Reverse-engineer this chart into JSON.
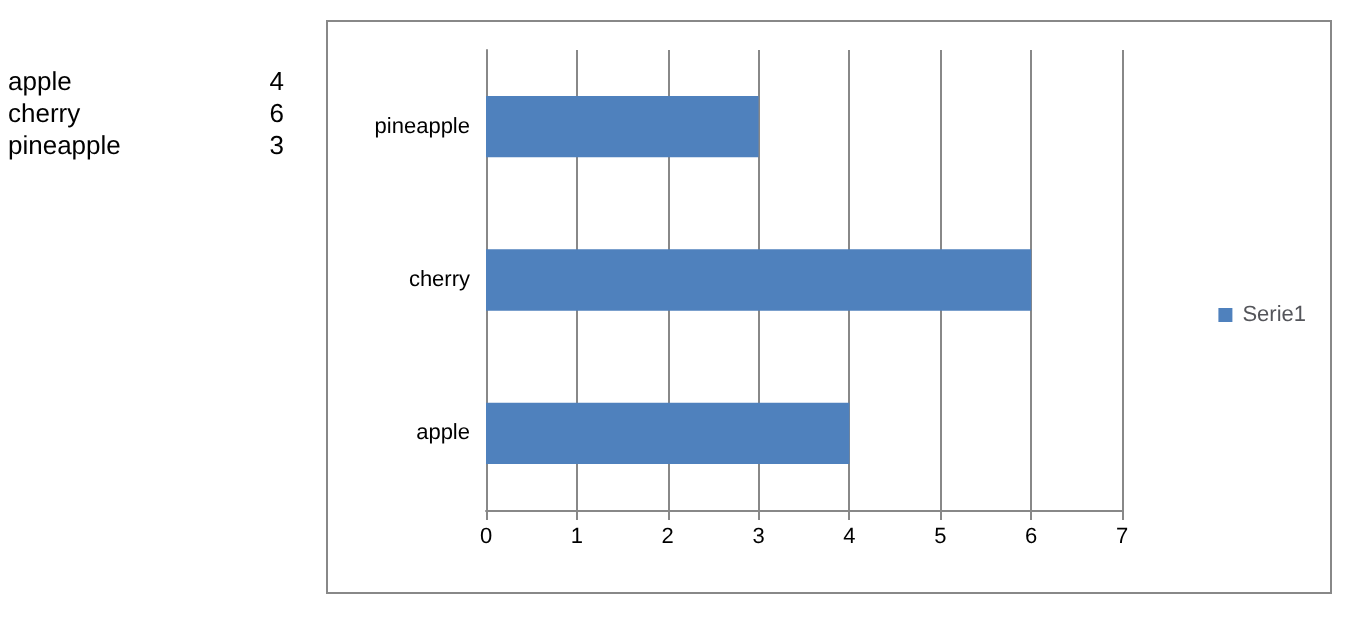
{
  "chart_data": {
    "type": "bar",
    "orientation": "horizontal",
    "categories": [
      "pineapple",
      "cherry",
      "apple"
    ],
    "series": [
      {
        "name": "Serie1",
        "color": "#4f81bd",
        "values": [
          3,
          6,
          4
        ]
      }
    ],
    "xlim": [
      0,
      7
    ],
    "xticks": [
      0,
      1,
      2,
      3,
      4,
      5,
      6,
      7
    ],
    "grid": "x",
    "legend": "right",
    "annotations": [
      "apple",
      "4",
      "cherry",
      "6",
      "pineapple",
      "3"
    ]
  }
}
